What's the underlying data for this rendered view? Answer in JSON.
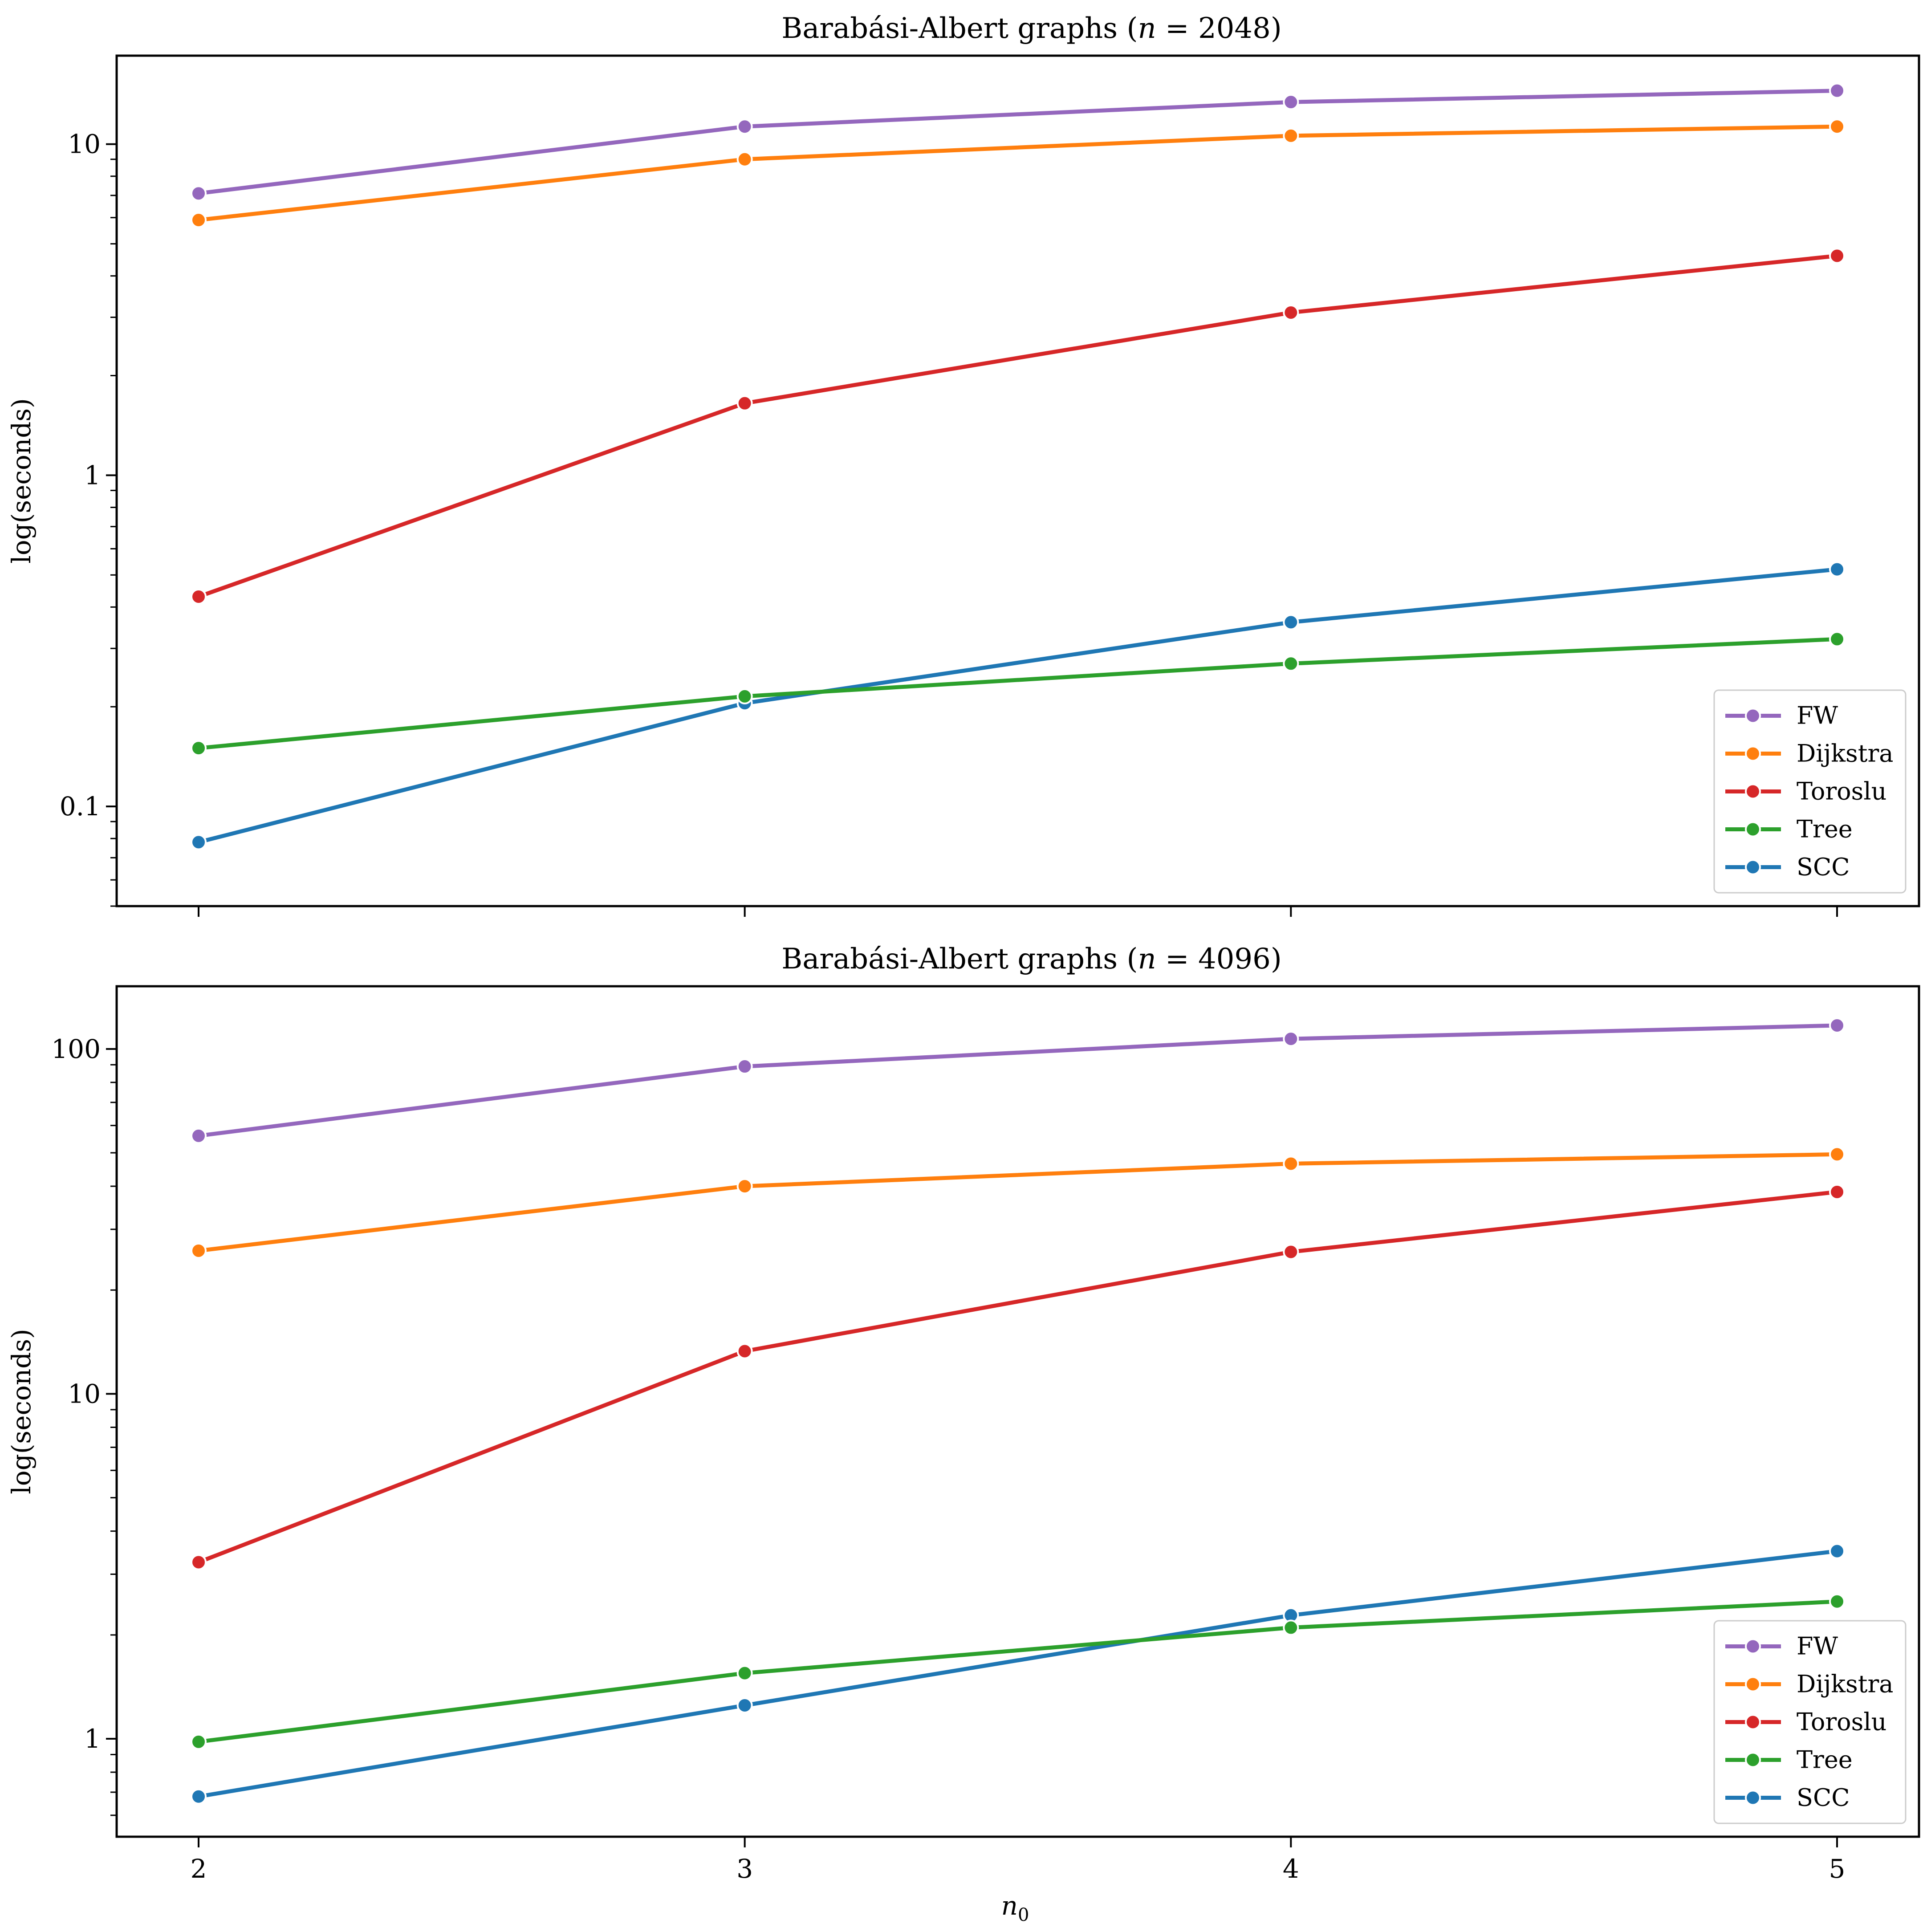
{
  "chart_data": [
    {
      "type": "line",
      "title": "Barabási-Albert graphs (n = 2048)",
      "xlabel": "",
      "ylabel": "log(seconds)",
      "yscale": "log",
      "ylim": [
        0.05,
        18.5
      ],
      "xlim": [
        1.85,
        5.15
      ],
      "x": [
        2,
        3,
        4,
        5
      ],
      "x_tick_labels": [
        "",
        "",
        "",
        ""
      ],
      "y_ticks": [
        0.1,
        1,
        10
      ],
      "y_tick_labels": [
        "0.1",
        "1",
        "10"
      ],
      "grid": false,
      "legend_position": "lower-right",
      "series": [
        {
          "name": "FW",
          "color": "#9467bd",
          "values": [
            7.1,
            11.3,
            13.4,
            14.5
          ]
        },
        {
          "name": "Dijkstra",
          "color": "#ff7f0e",
          "values": [
            5.9,
            9.0,
            10.6,
            11.3
          ]
        },
        {
          "name": "Toroslu",
          "color": "#d62728",
          "values": [
            0.43,
            1.65,
            3.1,
            4.6
          ]
        },
        {
          "name": "Tree",
          "color": "#2ca02c",
          "values": [
            0.15,
            0.215,
            0.27,
            0.32
          ]
        },
        {
          "name": "SCC",
          "color": "#1f77b4",
          "values": [
            0.078,
            0.205,
            0.36,
            0.52
          ]
        }
      ]
    },
    {
      "type": "line",
      "title": "Barabási-Albert graphs (n = 4096)",
      "xlabel": "n0",
      "ylabel": "log(seconds)",
      "yscale": "log",
      "ylim": [
        0.52,
        152
      ],
      "xlim": [
        1.85,
        5.15
      ],
      "x": [
        2,
        3,
        4,
        5
      ],
      "x_tick_labels": [
        "2",
        "3",
        "4",
        "5"
      ],
      "y_ticks": [
        1,
        10,
        100
      ],
      "y_tick_labels": [
        "1",
        "10",
        "100"
      ],
      "grid": false,
      "legend_position": "lower-right",
      "series": [
        {
          "name": "FW",
          "color": "#9467bd",
          "values": [
            56,
            89,
            107,
            117
          ]
        },
        {
          "name": "Dijkstra",
          "color": "#ff7f0e",
          "values": [
            26,
            40,
            46.5,
            49.5
          ]
        },
        {
          "name": "Toroslu",
          "color": "#d62728",
          "values": [
            3.25,
            13.3,
            25.8,
            38.5
          ]
        },
        {
          "name": "Tree",
          "color": "#2ca02c",
          "values": [
            0.98,
            1.55,
            2.1,
            2.5
          ]
        },
        {
          "name": "SCC",
          "color": "#1f77b4",
          "values": [
            0.68,
            1.25,
            2.28,
            3.5
          ]
        }
      ]
    }
  ]
}
